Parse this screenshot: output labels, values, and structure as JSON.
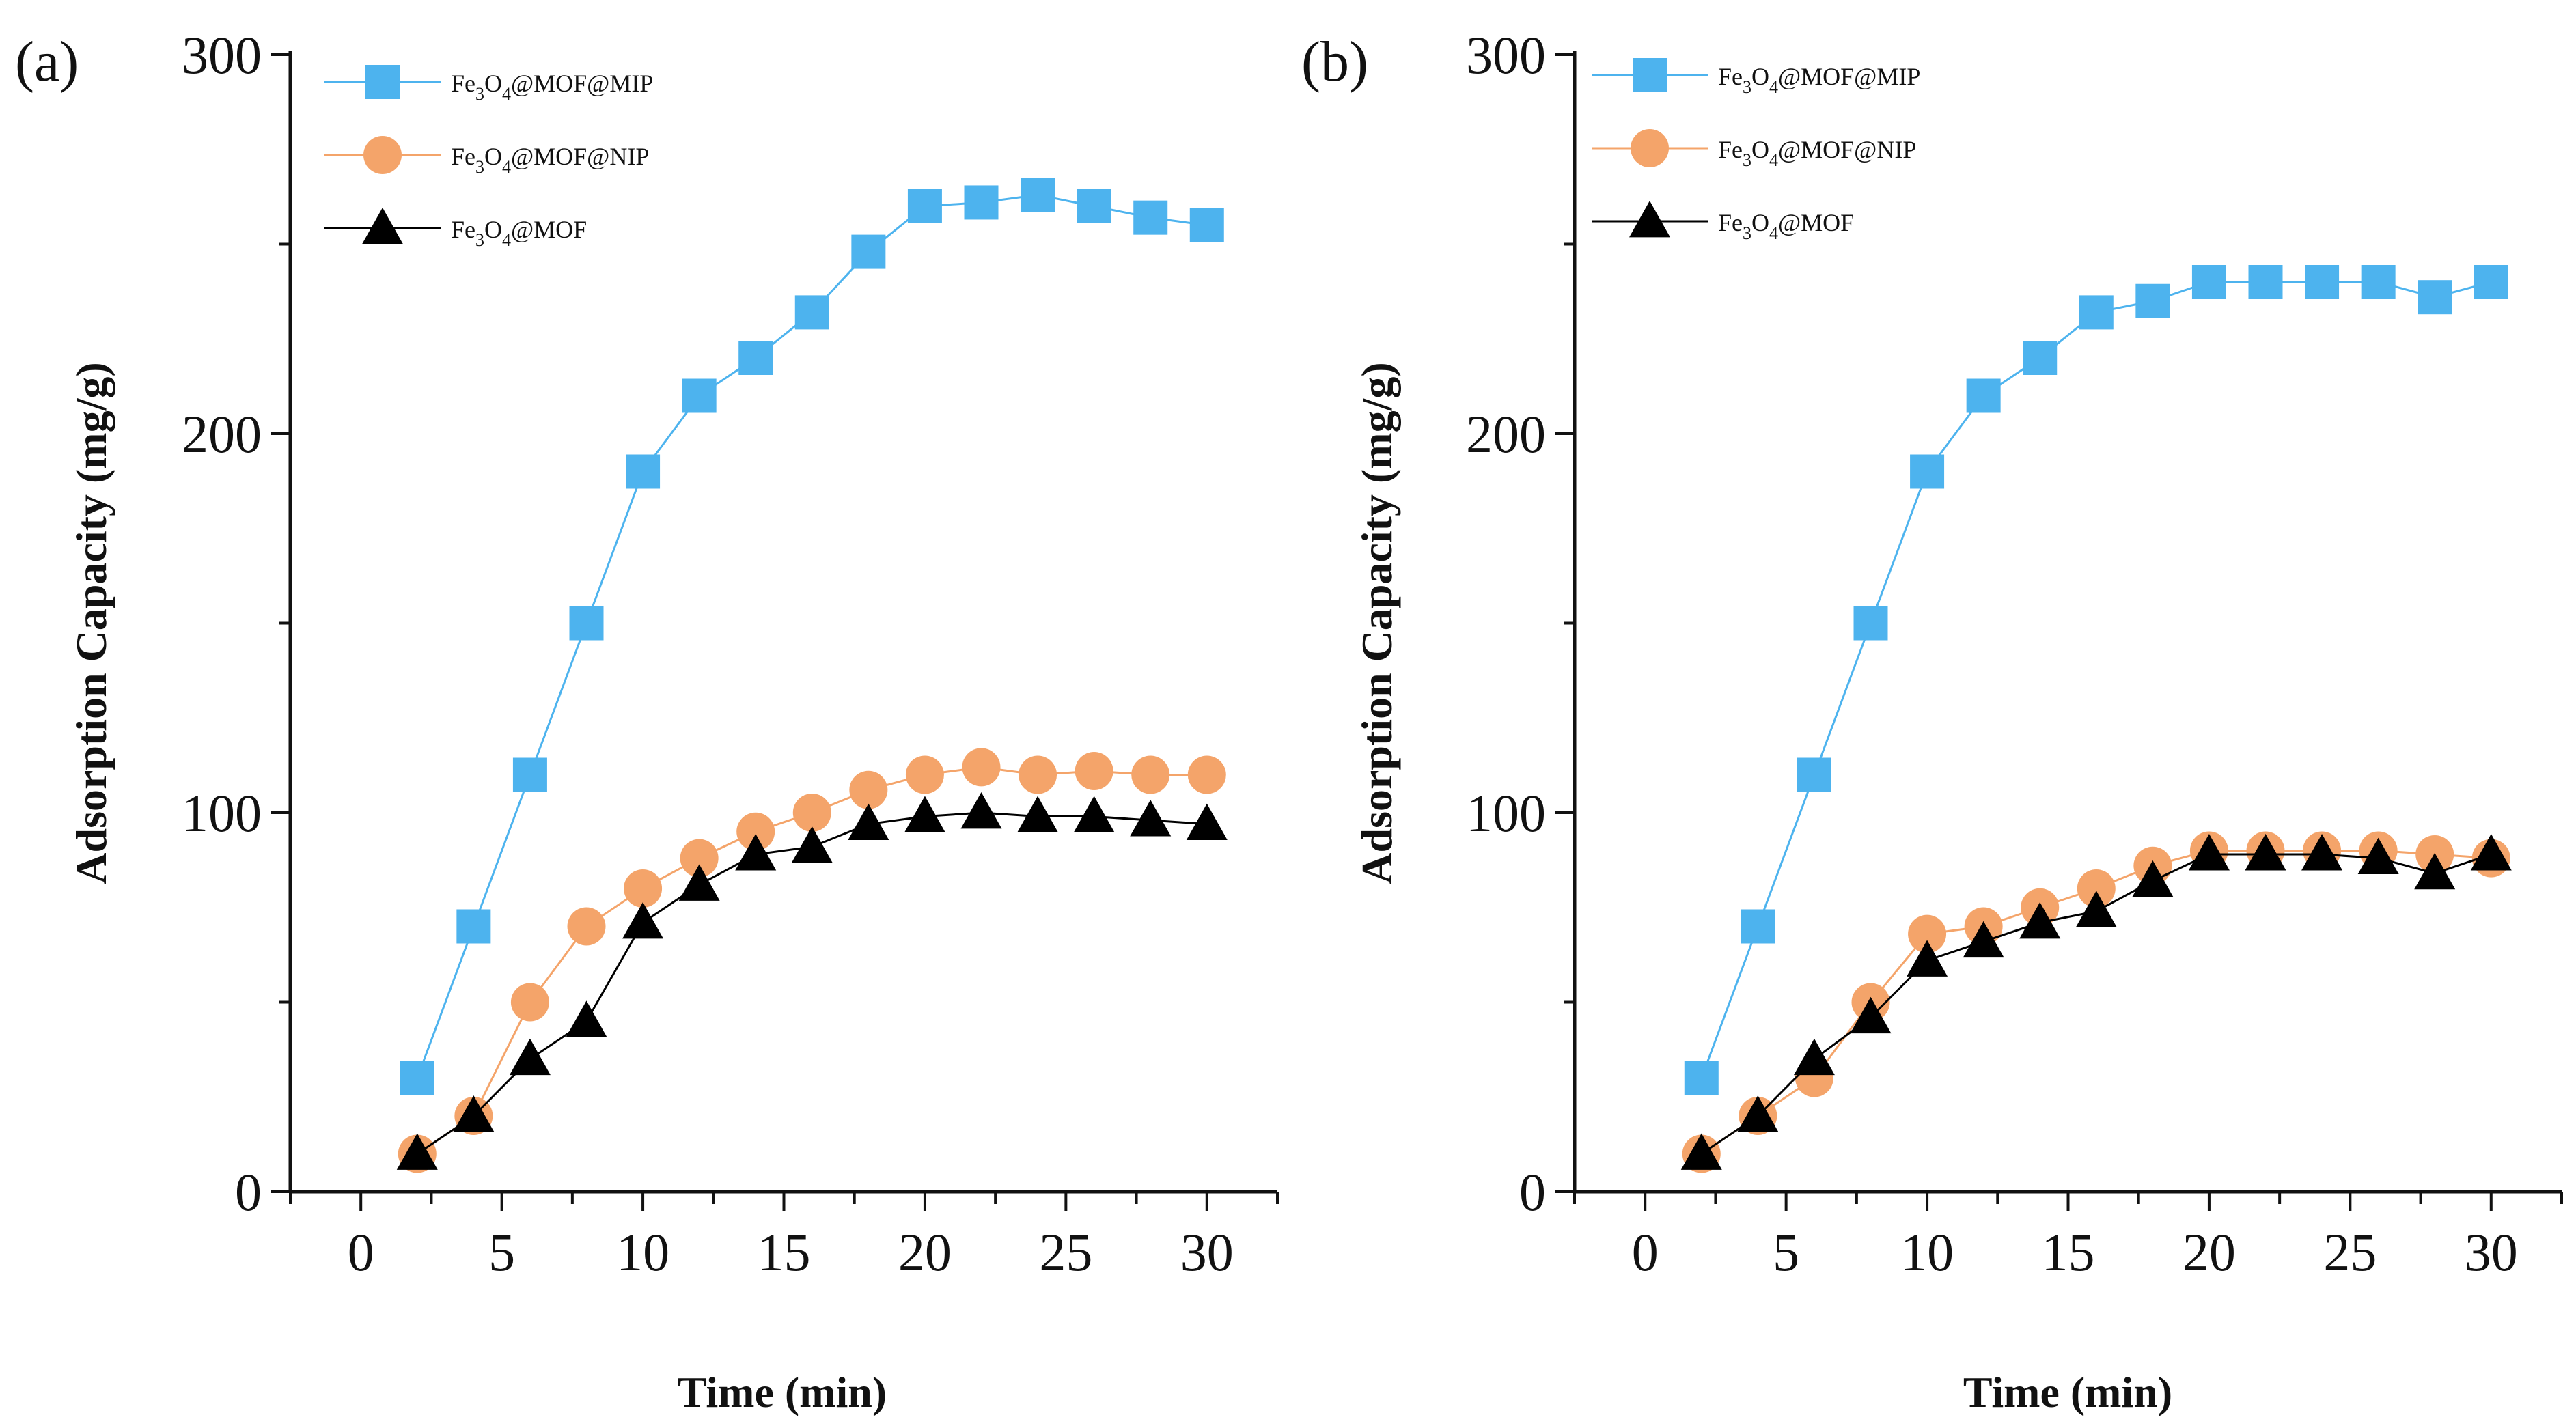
{
  "chart_data": [
    {
      "panel_label": "(a)",
      "type": "line",
      "xlabel": "Time (min)",
      "ylabel": "Adsorption Capacity (mg/g)",
      "xlim": [
        -2.5,
        32.5
      ],
      "ylim": [
        0,
        300
      ],
      "x_ticks": [
        0,
        5,
        10,
        15,
        20,
        25,
        30
      ],
      "y_ticks": [
        0,
        100,
        200,
        300
      ],
      "x": [
        2,
        4,
        6,
        8,
        10,
        12,
        14,
        16,
        18,
        20,
        22,
        24,
        26,
        28,
        30
      ],
      "series": [
        {
          "name": "Fe3O4@MOF@MIP",
          "label_parts": [
            "Fe",
            "3",
            "O",
            "4",
            "@MOF@MIP"
          ],
          "marker": "square",
          "color": "#4db3ee",
          "values": [
            30,
            70,
            110,
            150,
            190,
            210,
            220,
            232,
            248,
            260,
            261,
            263,
            260,
            257,
            255
          ]
        },
        {
          "name": "Fe3O4@MOF@NIP",
          "label_parts": [
            "Fe",
            "3",
            "O",
            "4",
            "@MOF@NIP"
          ],
          "marker": "circle",
          "color": "#f4a46a",
          "values": [
            10,
            20,
            50,
            70,
            80,
            88,
            95,
            100,
            106,
            110,
            112,
            110,
            111,
            110,
            110
          ]
        },
        {
          "name": "Fe3O4@MOF",
          "label_parts": [
            "Fe",
            "3",
            "O",
            "4",
            "@MOF"
          ],
          "marker": "triangle",
          "color": "#000000",
          "values": [
            10,
            20,
            35,
            45,
            71,
            81,
            89,
            91,
            97,
            99,
            100,
            99,
            99,
            98,
            97
          ]
        }
      ]
    },
    {
      "panel_label": "(b)",
      "type": "line",
      "xlabel": "Time (min)",
      "ylabel": "Adsorption Capacity (mg/g)",
      "xlim": [
        -2.5,
        32.5
      ],
      "ylim": [
        0,
        300
      ],
      "x_ticks": [
        0,
        5,
        10,
        15,
        20,
        25,
        30
      ],
      "y_ticks": [
        0,
        100,
        200,
        300
      ],
      "x": [
        2,
        4,
        6,
        8,
        10,
        12,
        14,
        16,
        18,
        20,
        22,
        24,
        26,
        28,
        30
      ],
      "series": [
        {
          "name": "Fe3O4@MOF@MIP",
          "label_parts": [
            "Fe",
            "3",
            "O",
            "4",
            "@MOF@MIP"
          ],
          "marker": "square",
          "color": "#4db3ee",
          "values": [
            30,
            70,
            110,
            150,
            190,
            210,
            220,
            232,
            235,
            240,
            240,
            240,
            240,
            236,
            240
          ]
        },
        {
          "name": "Fe3O4@MOF@NIP",
          "label_parts": [
            "Fe",
            "3",
            "O",
            "4",
            "@MOF@NIP"
          ],
          "marker": "circle",
          "color": "#f4a46a",
          "values": [
            10,
            20,
            30,
            50,
            68,
            70,
            75,
            80,
            86,
            90,
            90,
            90,
            90,
            89,
            88
          ]
        },
        {
          "name": "Fe3O4@MOF",
          "label_parts": [
            "Fe",
            "3",
            "O",
            "4",
            "@MOF"
          ],
          "marker": "triangle",
          "color": "#000000",
          "values": [
            10,
            20,
            35,
            46,
            61,
            66,
            71,
            74,
            82,
            89,
            89,
            89,
            88,
            84,
            89
          ]
        }
      ]
    }
  ]
}
